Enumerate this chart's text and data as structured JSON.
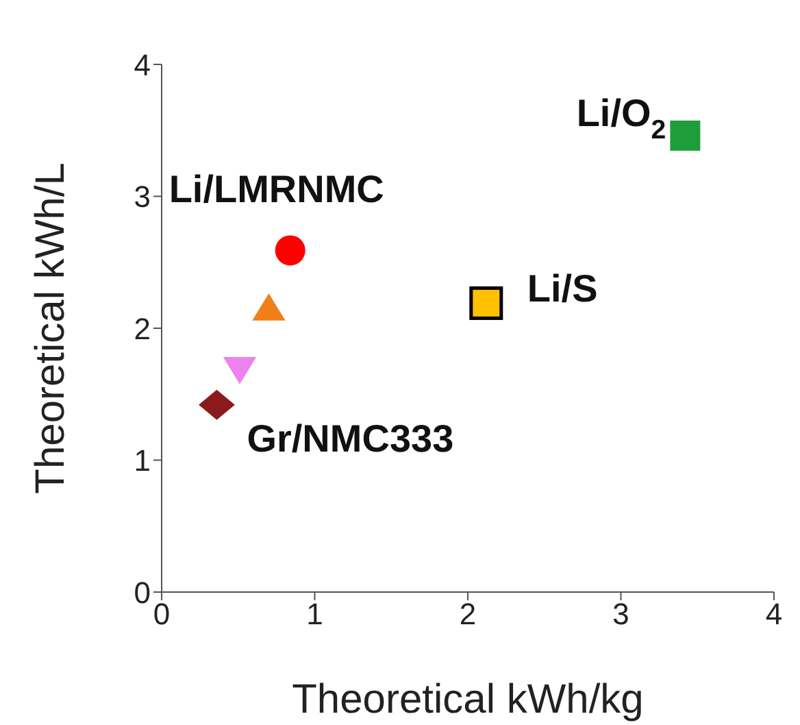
{
  "chart_data": {
    "type": "scatter",
    "xlabel": "Theoretical kWh/kg",
    "ylabel": "Theoretical kWh/L",
    "xlim": [
      0,
      4
    ],
    "xticks": [
      0,
      1,
      2,
      3,
      4
    ],
    "ylim": [
      0,
      4
    ],
    "yticks": [
      0,
      1,
      2,
      3,
      4
    ],
    "grid": false,
    "legend": false,
    "series": [
      {
        "color": "#ff0000",
        "marker": "circle",
        "x": [
          0.84
        ],
        "values": [
          2.59
        ]
      },
      {
        "color": "#f07f1a",
        "marker": "triangle",
        "x": [
          0.7
        ],
        "values": [
          2.15
        ]
      },
      {
        "color": "#ee82ee",
        "marker": "triangle-down",
        "x": [
          0.51
        ],
        "values": [
          1.69
        ]
      },
      {
        "color": "#8b1a1a",
        "marker": "diamond",
        "x": [
          0.36
        ],
        "values": [
          1.42
        ]
      },
      {
        "color": "#ffc000",
        "marker": "square",
        "x": [
          2.12
        ],
        "values": [
          2.19
        ]
      },
      {
        "color": "#1e9e3a",
        "marker": "square",
        "x": [
          3.42
        ],
        "values": [
          3.46
        ]
      }
    ],
    "annotations": [
      {
        "text": "Li/O$_{2}$",
        "x": 3.42,
        "y": 3.46
      },
      {
        "text": "Li/LMRNMC",
        "x": 0.84,
        "y": 2.59
      },
      {
        "text": "Li/S",
        "x": 2.12,
        "y": 2.19
      },
      {
        "text": "Gr/NMC333",
        "x": 0.36,
        "y": 1.42
      }
    ]
  }
}
